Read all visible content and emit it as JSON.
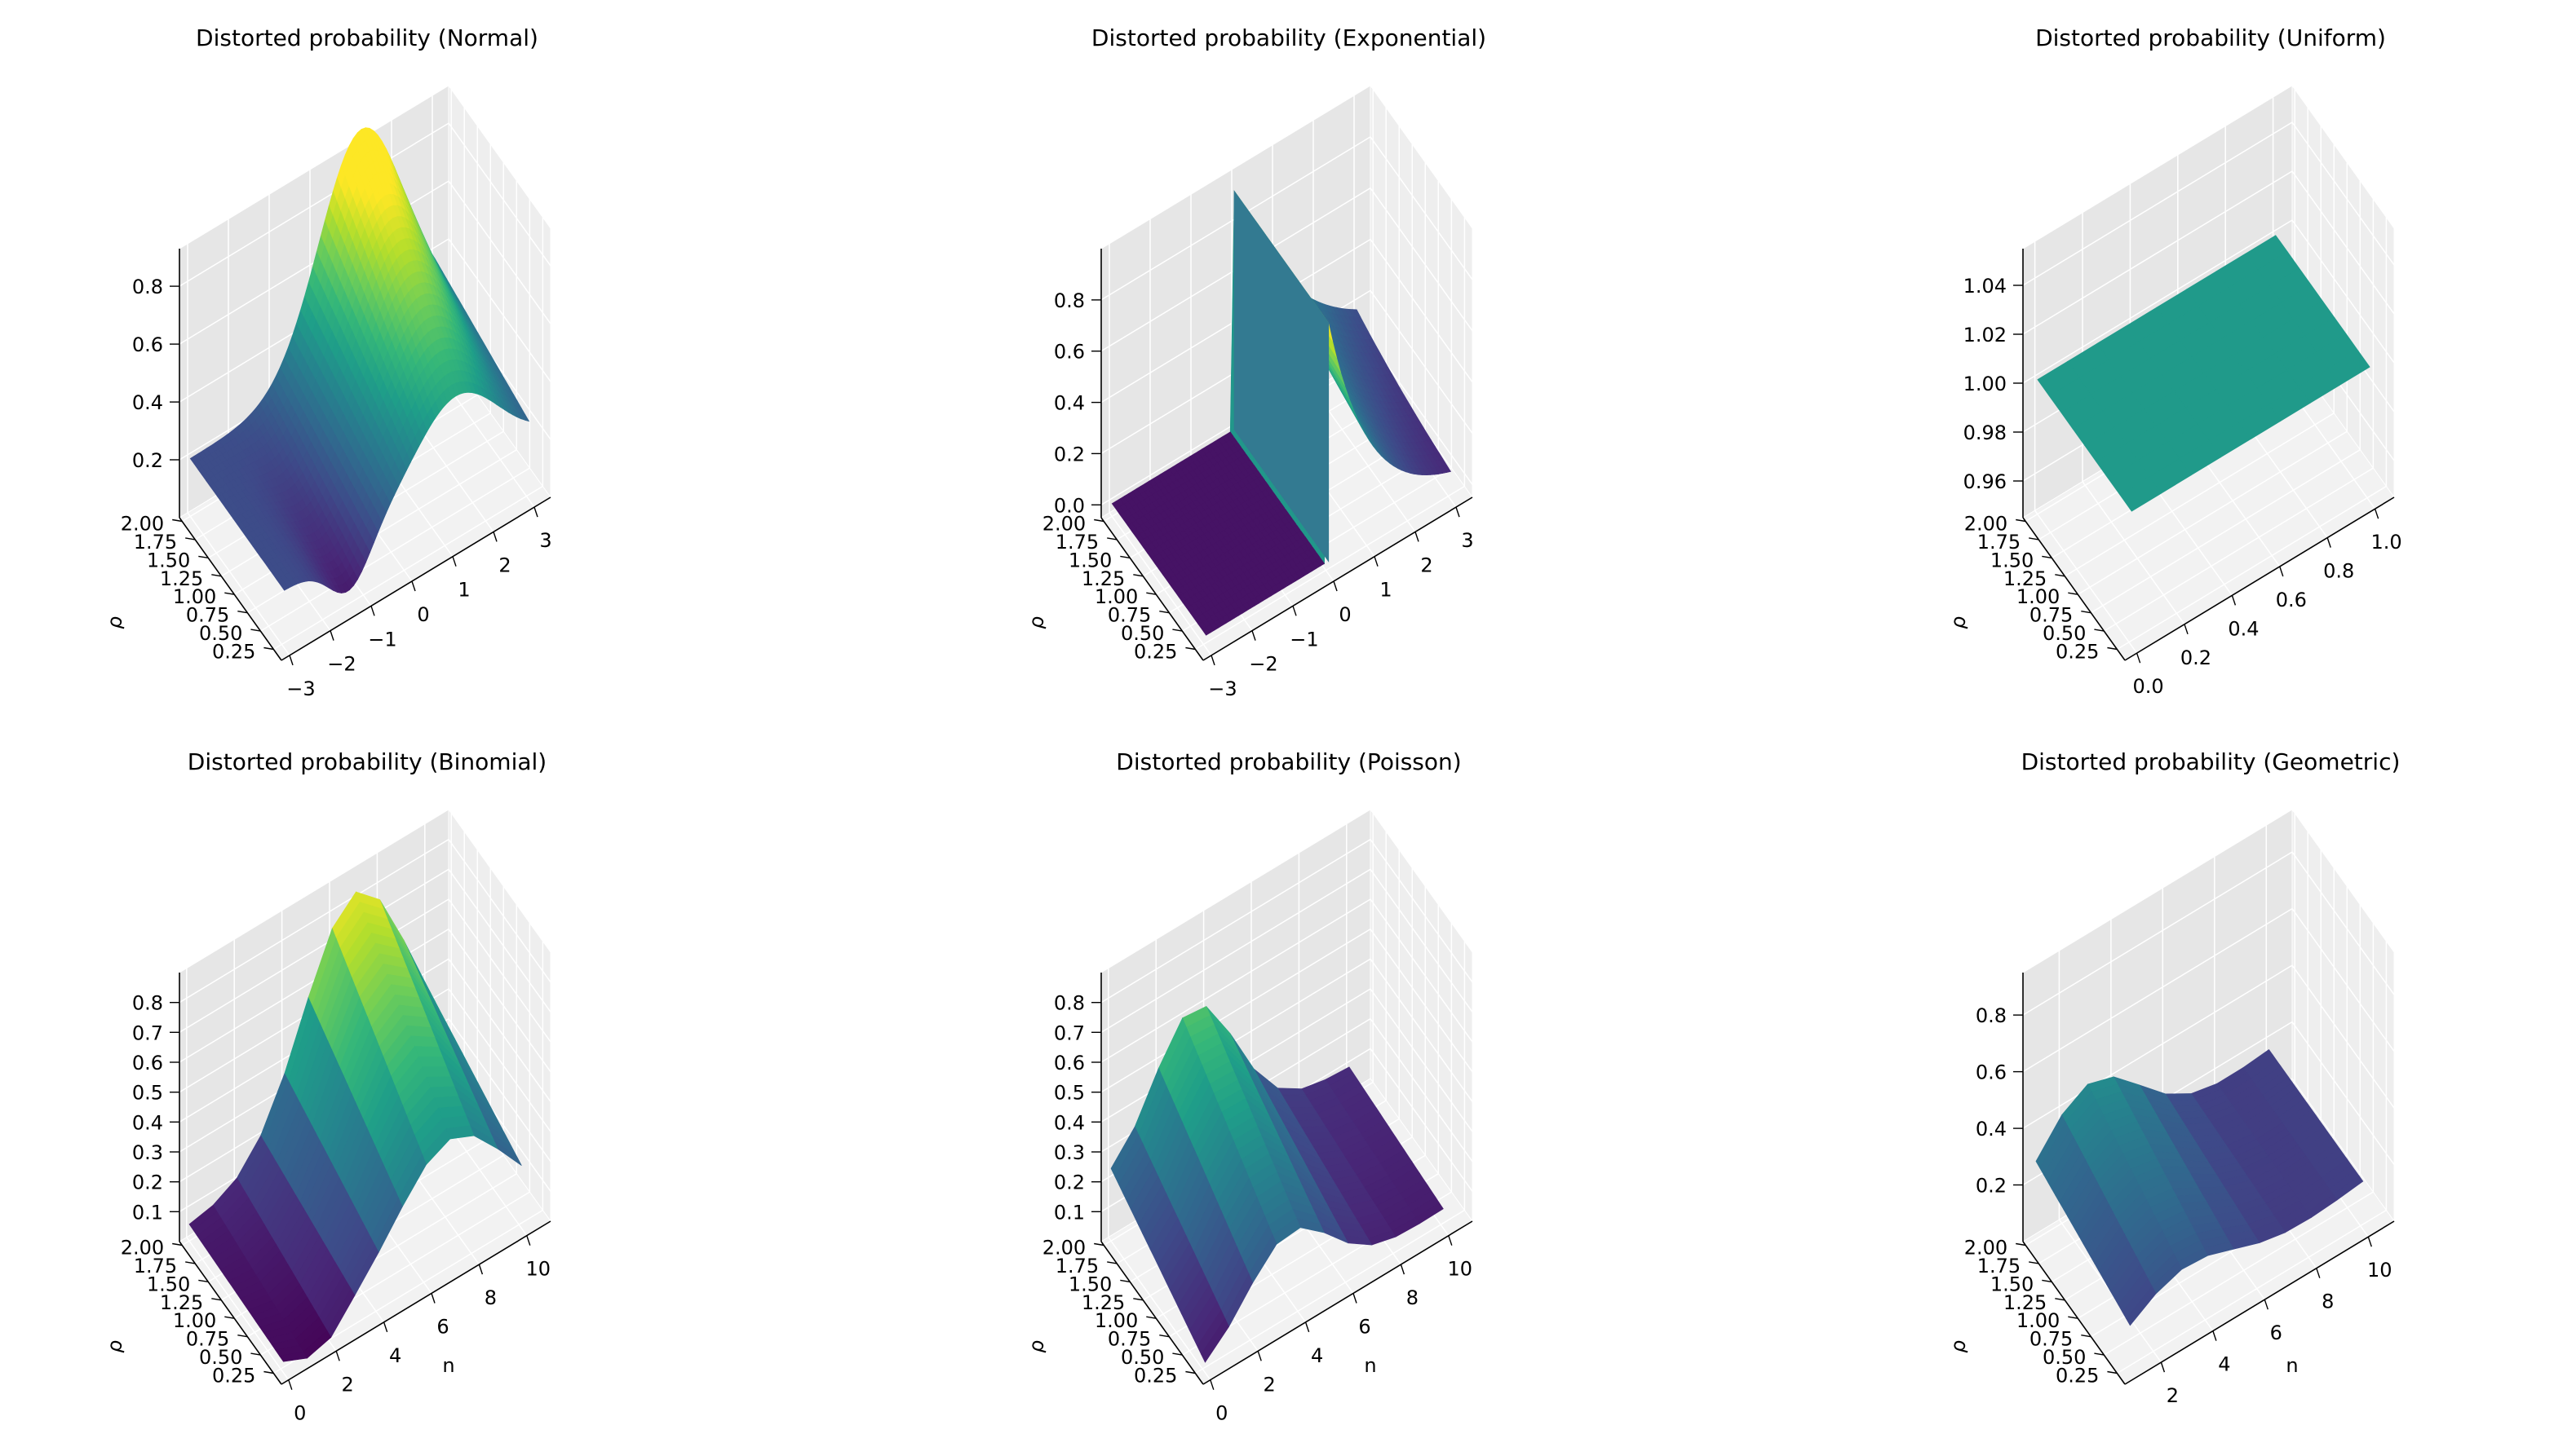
{
  "figure": {
    "background": "#ffffff",
    "pane_back": "#e6e6e6",
    "pane_side": "#eeeeee",
    "pane_floor": "#f2f2f2"
  },
  "chart_data": [
    {
      "type": "surface3d",
      "distribution": "normal",
      "title": "Distorted probability (Normal)",
      "xlabel": "",
      "ylabel": "ρ",
      "zlabel": "",
      "x_range": [
        -3.2,
        3.4
      ],
      "y_range": [
        0.1,
        2.05
      ],
      "z_range": [
        0.0,
        0.93
      ],
      "x_ticks": [
        -3,
        -2,
        -1,
        0,
        1,
        2,
        3
      ],
      "x_ticklabels": [
        "−3",
        "−2",
        "−1",
        "0",
        "1",
        "2",
        "3"
      ],
      "y_ticks": [
        0.25,
        0.5,
        0.75,
        1.0,
        1.25,
        1.5,
        1.75,
        2.0
      ],
      "y_ticklabels": [
        "0.25",
        "0.50",
        "0.75",
        "1.00",
        "1.25",
        "1.50",
        "1.75",
        "2.00"
      ],
      "z_ticks": [
        0.2,
        0.4,
        0.6,
        0.8
      ],
      "z_ticklabels": [
        "0.2",
        "0.4",
        "0.6",
        "0.8"
      ],
      "surface": {
        "x_min": -3,
        "x_max": 3,
        "y_min": 0.2,
        "y_max": 2.0,
        "nx": 60,
        "ny": 24
      }
    },
    {
      "type": "surface3d",
      "distribution": "exponential",
      "title": "Distorted probability (Exponential)",
      "xlabel": "",
      "ylabel": "ρ",
      "zlabel": "",
      "x_range": [
        -3.2,
        3.4
      ],
      "y_range": [
        0.1,
        2.05
      ],
      "z_range": [
        -0.05,
        1.0
      ],
      "x_ticks": [
        -3,
        -2,
        -1,
        0,
        1,
        2,
        3
      ],
      "x_ticklabels": [
        "−3",
        "−2",
        "−1",
        "0",
        "1",
        "2",
        "3"
      ],
      "y_ticks": [
        0.25,
        0.5,
        0.75,
        1.0,
        1.25,
        1.5,
        1.75,
        2.0
      ],
      "y_ticklabels": [
        "0.25",
        "0.50",
        "0.75",
        "1.00",
        "1.25",
        "1.50",
        "1.75",
        "2.00"
      ],
      "z_ticks": [
        0.0,
        0.2,
        0.4,
        0.6,
        0.8
      ],
      "z_ticklabels": [
        "0.0",
        "0.2",
        "0.4",
        "0.6",
        "0.8"
      ],
      "surface": {
        "x_min": -3,
        "x_max": 3,
        "y_min": 0.2,
        "y_max": 2.0,
        "nx": 60,
        "ny": 24
      }
    },
    {
      "type": "surface3d",
      "distribution": "uniform",
      "title": "Distorted probability (Uniform)",
      "xlabel": "",
      "ylabel": "ρ",
      "zlabel": "",
      "x_range": [
        -0.05,
        1.08
      ],
      "y_range": [
        0.1,
        2.05
      ],
      "z_range": [
        0.945,
        1.055
      ],
      "x_ticks": [
        0.0,
        0.2,
        0.4,
        0.6,
        0.8,
        1.0
      ],
      "x_ticklabels": [
        "0.0",
        "0.2",
        "0.4",
        "0.6",
        "0.8",
        "1.0"
      ],
      "y_ticks": [
        0.25,
        0.5,
        0.75,
        1.0,
        1.25,
        1.5,
        1.75,
        2.0
      ],
      "y_ticklabels": [
        "0.25",
        "0.50",
        "0.75",
        "1.00",
        "1.25",
        "1.50",
        "1.75",
        "2.00"
      ],
      "z_ticks": [
        0.96,
        0.98,
        1.0,
        1.02,
        1.04
      ],
      "z_ticklabels": [
        "0.96",
        "0.98",
        "1.00",
        "1.02",
        "1.04"
      ],
      "surface": {
        "x_min": 0,
        "x_max": 1,
        "y_min": 0.2,
        "y_max": 2.0,
        "nx": 8,
        "ny": 8
      }
    },
    {
      "type": "surface3d",
      "distribution": "binomial",
      "title": "Distorted probability (Binomial)",
      "xlabel": "n",
      "ylabel": "ρ",
      "zlabel": "",
      "x_range": [
        -0.3,
        11.0
      ],
      "y_range": [
        0.1,
        2.05
      ],
      "z_range": [
        0.0,
        0.9
      ],
      "x_ticks": [
        0,
        2,
        4,
        6,
        8,
        10
      ],
      "x_ticklabels": [
        "0",
        "2",
        "4",
        "6",
        "8",
        "10"
      ],
      "y_ticks": [
        0.25,
        0.5,
        0.75,
        1.0,
        1.25,
        1.5,
        1.75,
        2.0
      ],
      "y_ticklabels": [
        "0.25",
        "0.50",
        "0.75",
        "1.00",
        "1.25",
        "1.50",
        "1.75",
        "2.00"
      ],
      "z_ticks": [
        0.1,
        0.2,
        0.3,
        0.4,
        0.5,
        0.6,
        0.7,
        0.8
      ],
      "z_ticklabels": [
        "0.1",
        "0.2",
        "0.3",
        "0.4",
        "0.5",
        "0.6",
        "0.7",
        "0.8"
      ],
      "surface": {
        "x_min": 0,
        "x_max": 10,
        "y_min": 0.2,
        "y_max": 2.0,
        "nx": 10,
        "ny": 24
      }
    },
    {
      "type": "surface3d",
      "distribution": "poisson",
      "title": "Distorted probability (Poisson)",
      "xlabel": "n",
      "ylabel": "ρ",
      "zlabel": "",
      "x_range": [
        -0.3,
        11.0
      ],
      "y_range": [
        0.1,
        2.05
      ],
      "z_range": [
        0.0,
        0.9
      ],
      "x_ticks": [
        0,
        2,
        4,
        6,
        8,
        10
      ],
      "x_ticklabels": [
        "0",
        "2",
        "4",
        "6",
        "8",
        "10"
      ],
      "y_ticks": [
        0.25,
        0.5,
        0.75,
        1.0,
        1.25,
        1.5,
        1.75,
        2.0
      ],
      "y_ticklabels": [
        "0.25",
        "0.50",
        "0.75",
        "1.00",
        "1.25",
        "1.50",
        "1.75",
        "2.00"
      ],
      "z_ticks": [
        0.1,
        0.2,
        0.3,
        0.4,
        0.5,
        0.6,
        0.7,
        0.8
      ],
      "z_ticklabels": [
        "0.1",
        "0.2",
        "0.3",
        "0.4",
        "0.5",
        "0.6",
        "0.7",
        "0.8"
      ],
      "surface": {
        "x_min": 0,
        "x_max": 10,
        "y_min": 0.2,
        "y_max": 2.0,
        "nx": 10,
        "ny": 24
      }
    },
    {
      "type": "surface3d",
      "distribution": "geometric",
      "title": "Distorted probability (Geometric)",
      "xlabel": "n",
      "ylabel": "ρ",
      "zlabel": "",
      "x_range": [
        0.6,
        11.0
      ],
      "y_range": [
        0.1,
        2.05
      ],
      "z_range": [
        0.0,
        0.95
      ],
      "x_ticks": [
        2,
        4,
        6,
        8,
        10
      ],
      "x_ticklabels": [
        "2",
        "4",
        "6",
        "8",
        "10"
      ],
      "y_ticks": [
        0.25,
        0.5,
        0.75,
        1.0,
        1.25,
        1.5,
        1.75,
        2.0
      ],
      "y_ticklabels": [
        "0.25",
        "0.50",
        "0.75",
        "1.00",
        "1.25",
        "1.50",
        "1.75",
        "2.00"
      ],
      "z_ticks": [
        0.2,
        0.4,
        0.6,
        0.8
      ],
      "z_ticklabels": [
        "0.2",
        "0.4",
        "0.6",
        "0.8"
      ],
      "surface": {
        "x_min": 1,
        "x_max": 10,
        "y_min": 0.2,
        "y_max": 2.0,
        "nx": 9,
        "ny": 24
      }
    }
  ]
}
